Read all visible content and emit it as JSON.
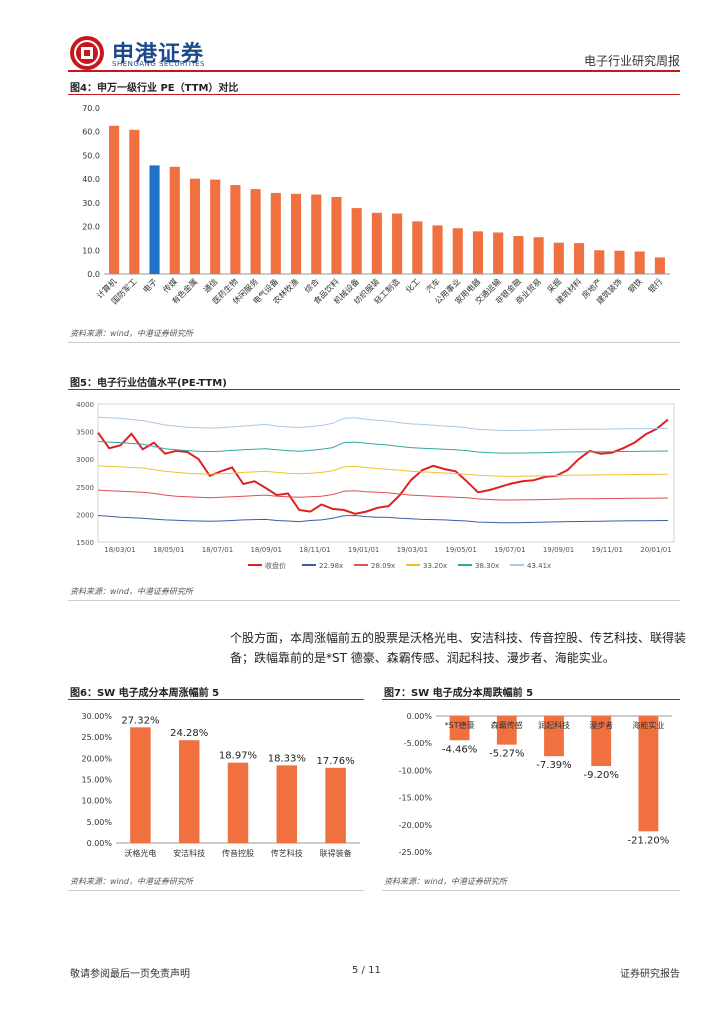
{
  "header": {
    "company_cn": "申港证券",
    "company_en": "SHENGANG SECURITIES",
    "report_type": "电子行业研究周报"
  },
  "fig4": {
    "title": "图4：申万一级行业 PE（TTM）对比",
    "source": "资料来源：wind，中港证券研究所",
    "chart_data": {
      "type": "bar",
      "title": "申万一级行业 PE（TTM）对比",
      "ylim": [
        0,
        70
      ],
      "yticks": [
        "0.0",
        "10.0",
        "20.0",
        "30.0",
        "40.0",
        "50.0",
        "60.0",
        "70.0"
      ],
      "categories": [
        "计算机",
        "国防军工",
        "电子",
        "传媒",
        "有色金属",
        "通信",
        "医药生物",
        "休闲服务",
        "电气设备",
        "农林牧渔",
        "综合",
        "食品饮料",
        "机械设备",
        "纺织服装",
        "轻工制造",
        "化工",
        "汽车",
        "公用事业",
        "家用电器",
        "交通运输",
        "非银金融",
        "商业贸易",
        "采掘",
        "建筑材料",
        "房地产",
        "建筑装饰",
        "钢铁",
        "银行"
      ],
      "values": [
        62.5,
        60.8,
        45.8,
        45.2,
        40.2,
        39.8,
        37.5,
        35.8,
        34.2,
        33.8,
        33.5,
        32.5,
        27.8,
        25.8,
        25.5,
        22.2,
        20.5,
        19.3,
        18.0,
        17.5,
        16.0,
        15.5,
        13.2,
        13.0,
        10.0,
        9.8,
        9.5,
        7.0
      ],
      "highlight_category": "电子",
      "bar_color": "#f07040",
      "highlight_color": "#1f73c4"
    }
  },
  "fig5": {
    "title": "图5：电子行业估值水平(PE-TTM)",
    "source": "资料来源：wind，中港证券研究所",
    "chart_data": {
      "type": "line",
      "title": "电子行业估值水平(PE-TTM)",
      "ylim": [
        1500,
        4000
      ],
      "yticks": [
        "1500",
        "2000",
        "2500",
        "3000",
        "3500",
        "4000"
      ],
      "xticks": [
        "18/03/01",
        "18/05/01",
        "18/07/01",
        "18/09/01",
        "18/11/01",
        "19/01/01",
        "19/03/01",
        "19/05/01",
        "19/07/01",
        "19/09/01",
        "19/11/01",
        "20/01/01"
      ],
      "legend": [
        "收盘价",
        "22.98x",
        "28.09x",
        "33.20x",
        "38.30x",
        "43.41x"
      ],
      "series": [
        {
          "name": "收盘价",
          "color": "#e02020",
          "values": [
            3480,
            3200,
            3250,
            3460,
            3180,
            3300,
            3100,
            3150,
            3130,
            3000,
            2700,
            2780,
            2850,
            2550,
            2600,
            2480,
            2350,
            2380,
            2080,
            2050,
            2180,
            2100,
            2080,
            2010,
            2050,
            2120,
            2150,
            2350,
            2620,
            2800,
            2880,
            2820,
            2780,
            2600,
            2400,
            2440,
            2500,
            2560,
            2600,
            2620,
            2680,
            2700,
            2800,
            3000,
            3150,
            3100,
            3120,
            3200,
            3300,
            3450,
            3550,
            3720
          ]
        },
        {
          "name": "22.98x",
          "color": "#3a5fa8",
          "values": [
            1980,
            1965,
            1950,
            1940,
            1930,
            1915,
            1900,
            1895,
            1885,
            1880,
            1875,
            1880,
            1890,
            1900,
            1905,
            1910,
            1890,
            1880,
            1870,
            1890,
            1900,
            1930,
            1975,
            1980,
            1960,
            1950,
            1945,
            1930,
            1920,
            1910,
            1905,
            1900,
            1890,
            1880,
            1860,
            1855,
            1850,
            1850,
            1852,
            1855,
            1860,
            1865,
            1870,
            1872,
            1874,
            1876,
            1880,
            1882,
            1884,
            1886,
            1888,
            1890
          ]
        },
        {
          "name": "28.09x",
          "color": "#e05050",
          "values": [
            2440,
            2430,
            2420,
            2410,
            2400,
            2380,
            2350,
            2330,
            2320,
            2310,
            2300,
            2310,
            2320,
            2330,
            2340,
            2350,
            2330,
            2320,
            2310,
            2320,
            2330,
            2360,
            2420,
            2430,
            2410,
            2400,
            2390,
            2370,
            2350,
            2340,
            2330,
            2320,
            2310,
            2300,
            2280,
            2270,
            2260,
            2260,
            2262,
            2265,
            2270,
            2275,
            2280,
            2282,
            2284,
            2286,
            2288,
            2290,
            2292,
            2294,
            2296,
            2298
          ]
        },
        {
          "name": "33.20x",
          "color": "#f0c030",
          "values": [
            2880,
            2870,
            2860,
            2850,
            2840,
            2810,
            2780,
            2760,
            2745,
            2735,
            2730,
            2735,
            2745,
            2760,
            2770,
            2780,
            2760,
            2745,
            2735,
            2745,
            2760,
            2790,
            2860,
            2870,
            2850,
            2830,
            2815,
            2800,
            2780,
            2770,
            2760,
            2750,
            2740,
            2730,
            2710,
            2700,
            2690,
            2690,
            2692,
            2695,
            2700,
            2705,
            2710,
            2712,
            2714,
            2716,
            2718,
            2720,
            2722,
            2724,
            2726,
            2728
          ]
        },
        {
          "name": "38.30x",
          "color": "#2ea7a0",
          "values": [
            3320,
            3310,
            3300,
            3285,
            3270,
            3230,
            3190,
            3170,
            3155,
            3145,
            3140,
            3145,
            3160,
            3170,
            3180,
            3190,
            3170,
            3155,
            3145,
            3160,
            3180,
            3210,
            3300,
            3310,
            3290,
            3270,
            3255,
            3230,
            3210,
            3200,
            3190,
            3180,
            3170,
            3155,
            3130,
            3120,
            3110,
            3110,
            3112,
            3115,
            3120,
            3125,
            3130,
            3132,
            3134,
            3136,
            3138,
            3140,
            3142,
            3144,
            3146,
            3148
          ]
        },
        {
          "name": "43.41x",
          "color": "#a8c8e8",
          "values": [
            3760,
            3750,
            3740,
            3720,
            3700,
            3660,
            3620,
            3600,
            3580,
            3570,
            3565,
            3570,
            3585,
            3600,
            3615,
            3630,
            3600,
            3585,
            3575,
            3590,
            3610,
            3650,
            3740,
            3750,
            3725,
            3705,
            3690,
            3660,
            3640,
            3630,
            3615,
            3600,
            3590,
            3570,
            3540,
            3530,
            3520,
            3520,
            3522,
            3525,
            3530,
            3535,
            3540,
            3542,
            3544,
            3546,
            3548,
            3550,
            3552,
            3554,
            3556,
            3558
          ]
        }
      ]
    }
  },
  "body": {
    "paragraph": "个股方面，本周涨幅前五的股票是沃格光电、安洁科技、传音控股、传艺科技、联得装备；跌幅靠前的是*ST 德豪、森霸传感、润起科技、漫步者、海能实业。"
  },
  "fig6": {
    "title": "图6：SW 电子成分本周涨幅前 5",
    "source": "资料来源：wind，中港证券研究所",
    "chart_data": {
      "type": "bar",
      "title": "SW 电子成分本周涨幅前 5",
      "ylim": [
        0,
        30
      ],
      "yticks": [
        "0.00%",
        "5.00%",
        "10.00%",
        "15.00%",
        "20.00%",
        "25.00%",
        "30.00%"
      ],
      "categories": [
        "沃格光电",
        "安洁科技",
        "传音控股",
        "传艺科技",
        "联得装备"
      ],
      "values": [
        27.32,
        24.28,
        18.97,
        18.33,
        17.76
      ],
      "labels": [
        "27.32%",
        "24.28%",
        "18.97%",
        "18.33%",
        "17.76%"
      ],
      "bar_color": "#f07040"
    }
  },
  "fig7": {
    "title": "图7：SW 电子成分本周跌幅前 5",
    "source": "资料来源：wind，中港证券研究所",
    "chart_data": {
      "type": "bar",
      "title": "SW 电子成分本周跌幅前 5",
      "ylim": [
        -25,
        0
      ],
      "yticks": [
        "0.00%",
        "-5.00%",
        "-10.00%",
        "-15.00%",
        "-20.00%",
        "-25.00%"
      ],
      "categories": [
        "*ST德豪",
        "森霸传感",
        "润起科技",
        "漫步者",
        "海能实业"
      ],
      "values": [
        -4.46,
        -5.27,
        -7.39,
        -9.2,
        -21.2
      ],
      "labels": [
        "-4.46%",
        "-5.27%",
        "-7.39%",
        "-9.20%",
        "-21.20%"
      ],
      "bar_color": "#f07040"
    }
  },
  "footer": {
    "left": "敬请参阅最后一页免责声明",
    "page": "5 / 11",
    "right": "证券研究报告"
  }
}
